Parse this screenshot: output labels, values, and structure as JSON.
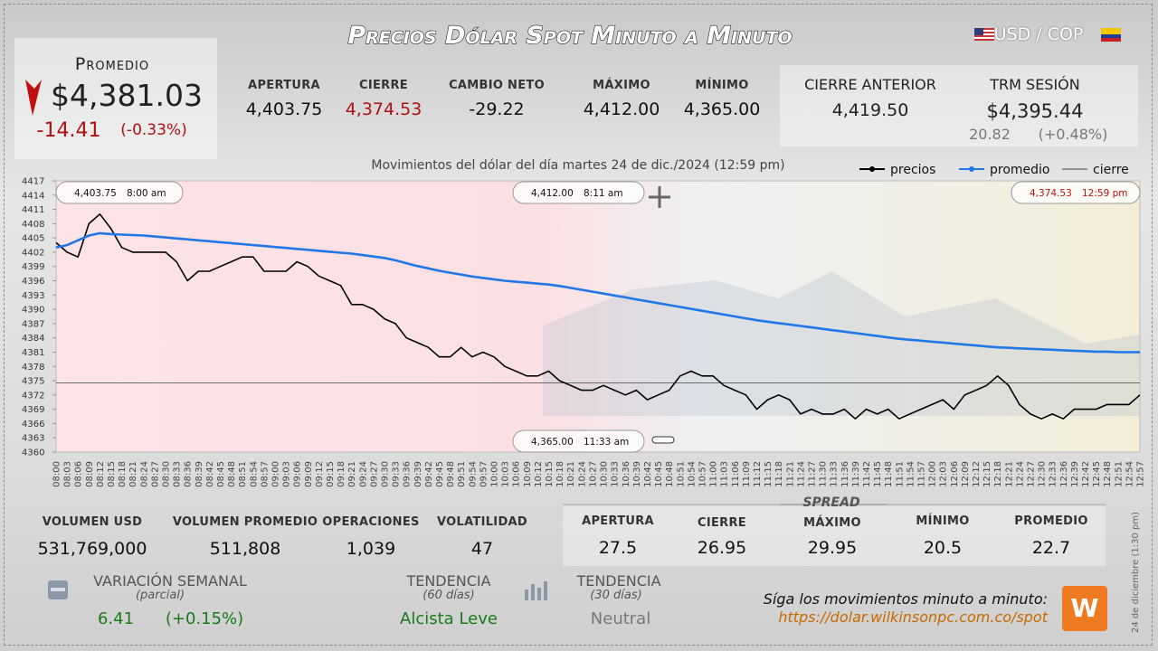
{
  "header": {
    "title": "Precios Dólar Spot Minuto a Minuto",
    "pair": "USD / COP"
  },
  "promedio": {
    "label": "Promedio",
    "value": "$4,381.03",
    "change": "-14.41",
    "change_pct": "(-0.33%)"
  },
  "session": [
    {
      "label": "APERTURA",
      "value": "4,403.75"
    },
    {
      "label": "CIERRE",
      "value": "4,374.53"
    },
    {
      "label": "CAMBIO NETO",
      "value": "-29.22"
    },
    {
      "label": "MÁXIMO",
      "value": "4,412.00"
    },
    {
      "label": "MÍNIMO",
      "value": "4,365.00"
    }
  ],
  "previous": [
    {
      "label": "CIERRE ANTERIOR",
      "value": "4,419.50"
    },
    {
      "label": "TRM SESIÓN",
      "value": "$4,395.44",
      "change": "20.82",
      "change_pct": "(+0.48%)"
    }
  ],
  "chart_data": {
    "type": "line",
    "subtitle": "Movimientos del dólar del día martes 24 de dic./2024 (12:59 pm)",
    "categories": [
      "08:00",
      "08:03",
      "08:06",
      "08:09",
      "08:12",
      "08:15",
      "08:18",
      "08:21",
      "08:24",
      "08:27",
      "08:30",
      "08:33",
      "08:36",
      "08:39",
      "08:42",
      "08:45",
      "08:48",
      "08:51",
      "08:54",
      "08:57",
      "09:00",
      "09:03",
      "09:06",
      "09:09",
      "09:12",
      "09:15",
      "09:18",
      "09:21",
      "09:24",
      "09:27",
      "09:30",
      "09:33",
      "09:36",
      "09:39",
      "09:42",
      "09:45",
      "09:48",
      "09:51",
      "09:54",
      "09:57",
      "10:00",
      "10:03",
      "10:06",
      "10:09",
      "10:12",
      "10:15",
      "10:18",
      "10:21",
      "10:24",
      "10:27",
      "10:30",
      "10:33",
      "10:36",
      "10:39",
      "10:42",
      "10:45",
      "10:48",
      "10:51",
      "10:54",
      "10:57",
      "11:00",
      "11:03",
      "11:06",
      "11:09",
      "11:12",
      "11:15",
      "11:18",
      "11:21",
      "11:24",
      "11:27",
      "11:30",
      "11:33",
      "11:36",
      "11:39",
      "11:42",
      "11:45",
      "11:48",
      "11:51",
      "11:54",
      "11:57",
      "12:00",
      "12:03",
      "12:06",
      "12:09",
      "12:12",
      "12:15",
      "12:18",
      "12:21",
      "12:24",
      "12:27",
      "12:30",
      "12:33",
      "12:36",
      "12:39",
      "12:42",
      "12:45",
      "12:48",
      "12:51",
      "12:54",
      "12:57"
    ],
    "series": [
      {
        "name": "precios",
        "color": "#000000",
        "values": [
          4404,
          4402,
          4401,
          4408,
          4410,
          4407,
          4403,
          4402,
          4402,
          4402,
          4402,
          4400,
          4396,
          4398,
          4398,
          4399,
          4400,
          4401,
          4401,
          4398,
          4398,
          4398,
          4400,
          4399,
          4397,
          4396,
          4395,
          4391,
          4391,
          4390,
          4388,
          4387,
          4384,
          4383,
          4382,
          4380,
          4380,
          4382,
          4380,
          4381,
          4380,
          4378,
          4377,
          4376,
          4376,
          4377,
          4375,
          4374,
          4373,
          4373,
          4374,
          4373,
          4372,
          4373,
          4371,
          4372,
          4373,
          4376,
          4377,
          4376,
          4376,
          4374,
          4373,
          4372,
          4369,
          4371,
          4372,
          4371,
          4368,
          4369,
          4368,
          4368,
          4369,
          4367,
          4369,
          4368,
          4369,
          4367,
          4368,
          4369,
          4370,
          4371,
          4369,
          4372,
          4373,
          4374,
          4376,
          4374,
          4370,
          4368,
          4367,
          4368,
          4367,
          4369,
          4369,
          4369,
          4370,
          4370,
          4370,
          4372
        ]
      },
      {
        "name": "promedio",
        "color": "#1f78e6",
        "values": [
          4403,
          4403.5,
          4404.5,
          4405.5,
          4406,
          4405.8,
          4405.7,
          4405.6,
          4405.5,
          4405.3,
          4405.1,
          4404.9,
          4404.7,
          4404.5,
          4404.3,
          4404.1,
          4403.9,
          4403.7,
          4403.5,
          4403.3,
          4403.1,
          4402.9,
          4402.7,
          4402.5,
          4402.3,
          4402.1,
          4401.9,
          4401.7,
          4401.4,
          4401.1,
          4400.8,
          4400.3,
          4399.7,
          4399.1,
          4398.6,
          4398.1,
          4397.7,
          4397.3,
          4396.9,
          4396.6,
          4396.3,
          4396.0,
          4395.8,
          4395.6,
          4395.4,
          4395.2,
          4394.9,
          4394.5,
          4394.1,
          4393.7,
          4393.3,
          4392.9,
          4392.5,
          4392.1,
          4391.7,
          4391.3,
          4390.9,
          4390.5,
          4390.1,
          4389.7,
          4389.3,
          4388.9,
          4388.5,
          4388.1,
          4387.7,
          4387.4,
          4387.1,
          4386.8,
          4386.5,
          4386.2,
          4385.9,
          4385.6,
          4385.3,
          4385.0,
          4384.7,
          4384.4,
          4384.1,
          4383.8,
          4383.6,
          4383.4,
          4383.2,
          4383.0,
          4382.8,
          4382.6,
          4382.4,
          4382.2,
          4382.0,
          4381.9,
          4381.8,
          4381.7,
          4381.6,
          4381.5,
          4381.4,
          4381.3,
          4381.2,
          4381.1,
          4381.1,
          4381.0,
          4381.0,
          4381.0
        ]
      }
    ],
    "reference_line": {
      "name": "cierre",
      "value": 4374.53,
      "color": "#444444"
    },
    "ylim": [
      4360,
      4417
    ],
    "yticks": [
      4360,
      4363,
      4366,
      4369,
      4372,
      4375,
      4378,
      4381,
      4384,
      4387,
      4390,
      4393,
      4396,
      4399,
      4402,
      4405,
      4408,
      4411,
      4414,
      4417
    ],
    "annotations": [
      {
        "value": "4,403.75",
        "time": "8:00 am"
      },
      {
        "value": "4,412.00",
        "time": "8:11 am"
      },
      {
        "value": "4,365.00",
        "time": "11:33 am"
      },
      {
        "value": "4,374.53",
        "time": "12:59 pm"
      }
    ]
  },
  "volume": [
    {
      "label": "VOLUMEN USD",
      "value": "531,769,000"
    },
    {
      "label": "VOLUMEN PROMEDIO",
      "value": "511,808"
    },
    {
      "label": "OPERACIONES",
      "value": "1,039"
    },
    {
      "label": "VOLATILIDAD",
      "value": "47"
    }
  ],
  "spread": {
    "title": "SPREAD",
    "items": [
      {
        "label": "APERTURA",
        "value": "27.5"
      },
      {
        "label": "CIERRE",
        "value": "26.95"
      },
      {
        "label": "MÁXIMO",
        "value": "29.95"
      },
      {
        "label": "MÍNIMO",
        "value": "20.5"
      },
      {
        "label": "PROMEDIO",
        "value": "22.7"
      }
    ]
  },
  "weekly": {
    "label": "VARIACIÓN SEMANAL",
    "note": "(parcial)",
    "value": "6.41",
    "pct": "(+0.15%)"
  },
  "trend60": {
    "label": "TENDENCIA",
    "note": "(60 días)",
    "value": "Alcista Leve"
  },
  "trend30": {
    "label": "TENDENCIA",
    "note": "(30 días)",
    "value": "Neutral"
  },
  "footer": {
    "cta": "Síga los movimientos minuto a minuto:",
    "url": "https://dolar.wilkinsonpc.com.co/spot",
    "date": "24 de diciembre (1:30 pm)"
  }
}
